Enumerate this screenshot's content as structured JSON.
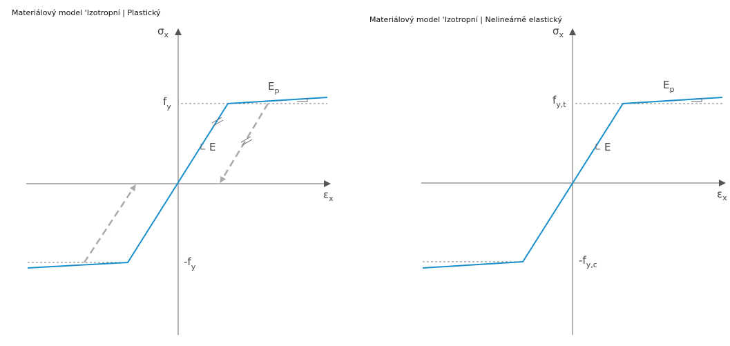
{
  "panels": [
    {
      "title": "Materiálový model 'Izotropní | Plastický",
      "y_axis": {
        "main": "σ",
        "sub": "x"
      },
      "x_axis": {
        "main": "ε",
        "sub": "x"
      },
      "upper": {
        "main": "f",
        "sub": "y"
      },
      "lower": {
        "main": "-f",
        "sub": "y"
      },
      "slope": "E",
      "plastic": {
        "main": "E",
        "sub": "p"
      }
    },
    {
      "title": "Materiálový model 'Izotropní | Nelineárně elastický",
      "y_axis": {
        "main": "σ",
        "sub": "x"
      },
      "x_axis": {
        "main": "ε",
        "sub": "x"
      },
      "upper": {
        "main": "f",
        "sub": "y,t"
      },
      "lower": {
        "main": "-f",
        "sub": "y,c"
      },
      "slope": "E",
      "plastic": {
        "main": "E",
        "sub": "p"
      }
    }
  ]
}
